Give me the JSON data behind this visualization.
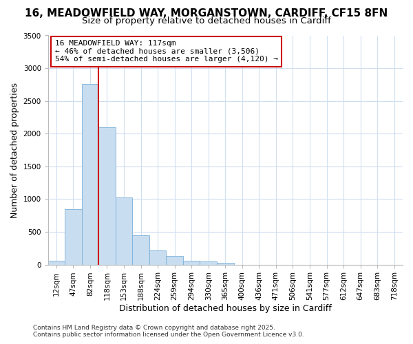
{
  "title_line1": "16, MEADOWFIELD WAY, MORGANSTOWN, CARDIFF, CF15 8FN",
  "title_line2": "Size of property relative to detached houses in Cardiff",
  "xlabel": "Distribution of detached houses by size in Cardiff",
  "ylabel": "Number of detached properties",
  "categories": [
    "12sqm",
    "47sqm",
    "82sqm",
    "118sqm",
    "153sqm",
    "188sqm",
    "224sqm",
    "259sqm",
    "294sqm",
    "330sqm",
    "365sqm",
    "400sqm",
    "436sqm",
    "471sqm",
    "506sqm",
    "541sqm",
    "577sqm",
    "612sqm",
    "647sqm",
    "683sqm",
    "718sqm"
  ],
  "values": [
    60,
    850,
    2760,
    2100,
    1025,
    450,
    215,
    135,
    60,
    50,
    25,
    0,
    0,
    0,
    0,
    0,
    0,
    0,
    0,
    0,
    0
  ],
  "bar_color": "#c8ddf0",
  "bar_edge_color": "#7ab0d8",
  "vline_color": "#cc0000",
  "annotation_text": "16 MEADOWFIELD WAY: 117sqm\n← 46% of detached houses are smaller (3,506)\n54% of semi-detached houses are larger (4,120) →",
  "annotation_box_color": "#ffffff",
  "annotation_box_edge_color": "#cc0000",
  "ylim": [
    0,
    3500
  ],
  "yticks": [
    0,
    500,
    1000,
    1500,
    2000,
    2500,
    3000,
    3500
  ],
  "footer_line1": "Contains HM Land Registry data © Crown copyright and database right 2025.",
  "footer_line2": "Contains public sector information licensed under the Open Government Licence v3.0.",
  "bg_color": "#ffffff",
  "plot_bg_color": "#ffffff",
  "grid_color": "#d0dff0",
  "title_fontsize": 11,
  "subtitle_fontsize": 9.5,
  "tick_fontsize": 7.5,
  "label_fontsize": 9,
  "footer_fontsize": 6.5
}
